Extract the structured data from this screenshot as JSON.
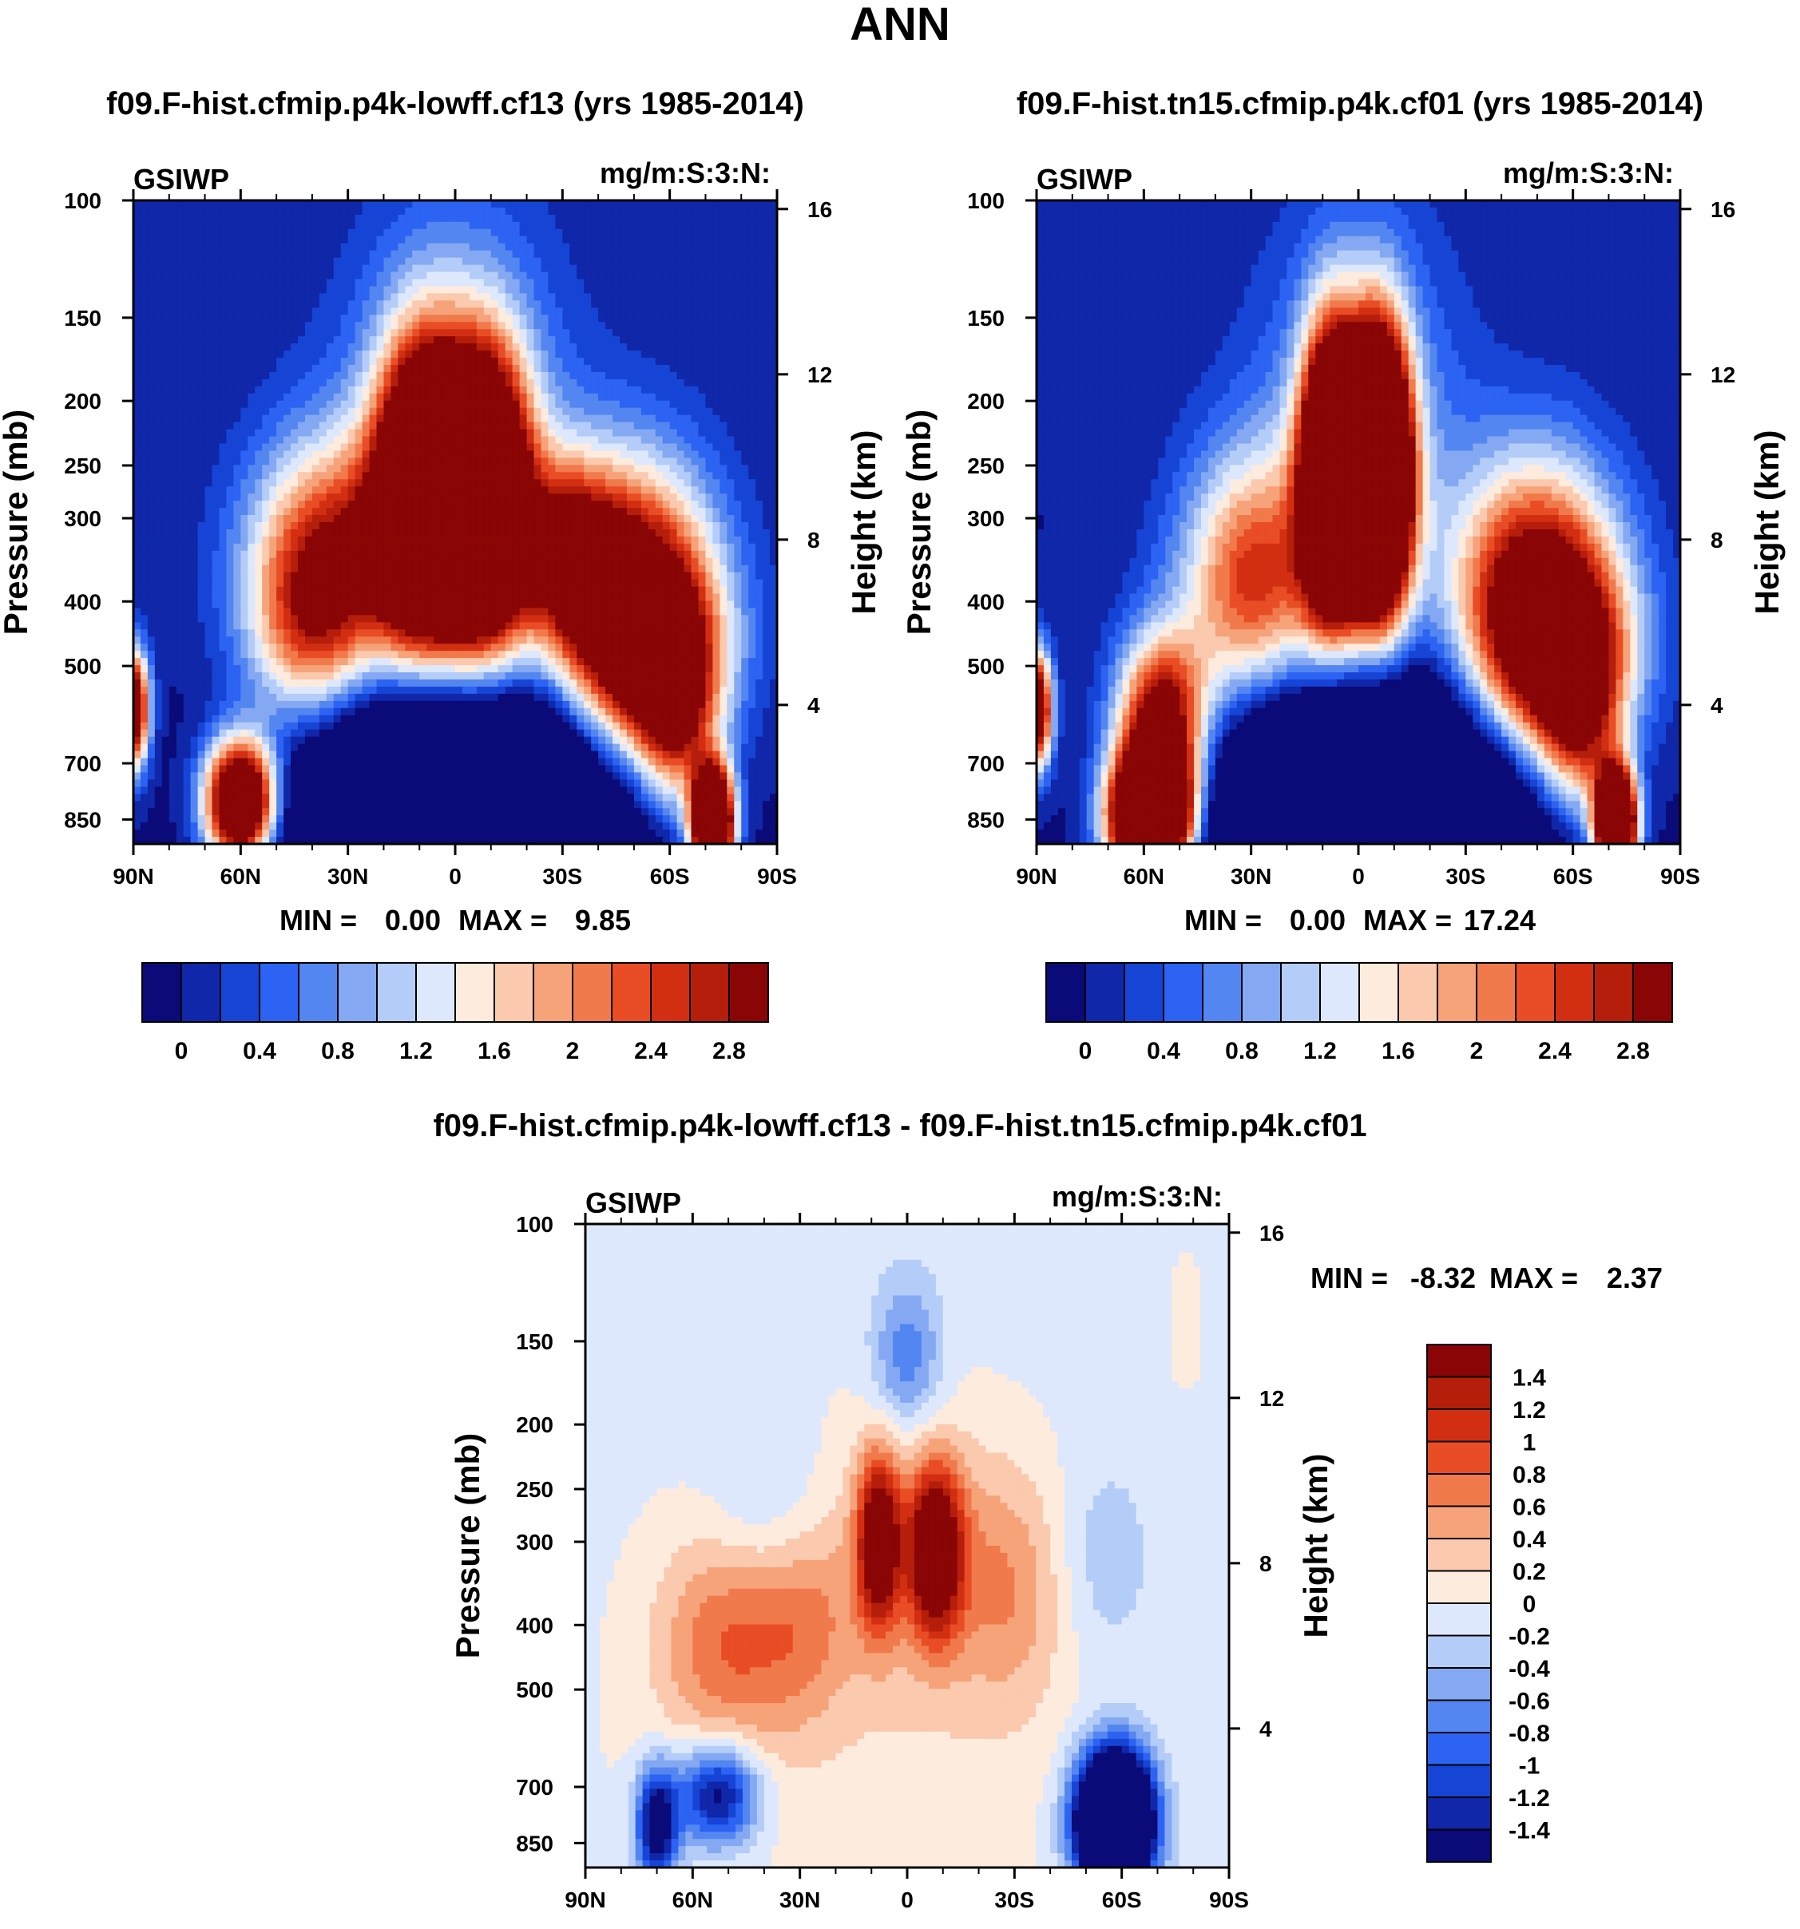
{
  "page_title": "ANN",
  "colors": {
    "seq_scale": [
      "#0a0a78",
      "#0f27a8",
      "#1645d6",
      "#2d63f2",
      "#5386f0",
      "#84a9f2",
      "#b4ccf8",
      "#dde8fc",
      "#fdebde",
      "#fbc9ae",
      "#f6a37a",
      "#f17a4c",
      "#e94d25",
      "#d22f12",
      "#b51e0a",
      "#8a0505"
    ],
    "diff_scale": [
      "#0a0a78",
      "#0f27a8",
      "#1645d6",
      "#2d63f2",
      "#5386f0",
      "#84a9f2",
      "#b4ccf8",
      "#dde8fc",
      "#fdebde",
      "#fbc9ae",
      "#f6a37a",
      "#f17a4c",
      "#e94d25",
      "#d22f12",
      "#b51e0a",
      "#8a0505"
    ]
  },
  "chart_data": [
    {
      "type": "heatmap",
      "title": "f09.F-hist.cfmip.p4k-lowff.cf13 (yrs 1985-2014)",
      "left_string": "GSIWP",
      "right_string": "mg/m:S:3:N:",
      "ylabel": "Pressure (mb)",
      "y2label": "Height (km)",
      "x_ticks": [
        "90N",
        "60N",
        "30N",
        "0",
        "30S",
        "60S",
        "90S"
      ],
      "y_ticks": [
        "100",
        "150",
        "200",
        "250",
        "300",
        "400",
        "500",
        "700",
        "850"
      ],
      "y2_ticks": [
        "16",
        "12",
        "8",
        "4"
      ],
      "min_label": "MIN =",
      "min_value": "0.00",
      "max_label": "MAX =",
      "max_value": "9.85",
      "colorbar_labels": [
        "0",
        "0.4",
        "0.8",
        "1.2",
        "1.6",
        "2",
        "2.4",
        "2.8"
      ],
      "xlim": [
        -90,
        90
      ],
      "ylim": [
        100,
        925
      ],
      "y_scale": "log",
      "field": {
        "bg": 0,
        "features": [
          {
            "lat": -8,
            "p": 290,
            "slat": 9,
            "sp": 0.36,
            "amp": 5.2
          },
          {
            "lat": 9,
            "p": 280,
            "slat": 9,
            "sp": 0.36,
            "amp": 5.0
          },
          {
            "lat": 0,
            "p": 230,
            "slat": 22,
            "sp": 0.55,
            "amp": 1.1
          },
          {
            "lat": -50,
            "p": 400,
            "slat": 16,
            "sp": 0.34,
            "amp": 3.4
          },
          {
            "lat": -62,
            "p": 620,
            "slat": 8,
            "sp": 0.22,
            "amp": 1.8
          },
          {
            "lat": -55,
            "p": 480,
            "slat": 14,
            "sp": 0.22,
            "amp": 1.8
          },
          {
            "lat": -72,
            "p": 860,
            "slat": 4,
            "sp": 0.13,
            "amp": 6.0
          },
          {
            "lat": -32,
            "p": 340,
            "slat": 9,
            "sp": 0.22,
            "amp": 2.0
          },
          {
            "lat": 35,
            "p": 350,
            "slat": 16,
            "sp": 0.3,
            "amp": 2.6
          },
          {
            "lat": 42,
            "p": 470,
            "slat": 12,
            "sp": 0.24,
            "amp": 1.2
          },
          {
            "lat": 60,
            "p": 800,
            "slat": 7,
            "sp": 0.15,
            "amp": 5.0
          },
          {
            "lat": 90,
            "p": 580,
            "slat": 3,
            "sp": 0.14,
            "amp": 4.0
          },
          {
            "lat": 0,
            "p": 880,
            "slat": 30,
            "sp": 0.35,
            "amp": -3.5
          }
        ]
      }
    },
    {
      "type": "heatmap",
      "title": "f09.F-hist.tn15.cfmip.p4k.cf01 (yrs 1985-2014)",
      "left_string": "GSIWP",
      "right_string": "mg/m:S:3:N:",
      "ylabel": "Pressure (mb)",
      "y2label": "Height (km)",
      "x_ticks": [
        "90N",
        "60N",
        "30N",
        "0",
        "30S",
        "60S",
        "90S"
      ],
      "y_ticks": [
        "100",
        "150",
        "200",
        "250",
        "300",
        "400",
        "500",
        "700",
        "850"
      ],
      "y2_ticks": [
        "16",
        "12",
        "8",
        "4"
      ],
      "min_label": "MIN =",
      "min_value": "0.00",
      "max_label": "MAX =",
      "max_value": "17.24",
      "colorbar_labels": [
        "0",
        "0.4",
        "0.8",
        "1.2",
        "1.6",
        "2",
        "2.4",
        "2.8"
      ],
      "xlim": [
        -90,
        90
      ],
      "ylim": [
        100,
        925
      ],
      "y_scale": "log",
      "field": {
        "bg": 0,
        "features": [
          {
            "lat": -6,
            "p": 260,
            "slat": 6,
            "sp": 0.34,
            "amp": 6.5
          },
          {
            "lat": 7,
            "p": 260,
            "slat": 6,
            "sp": 0.34,
            "amp": 6.0
          },
          {
            "lat": 0,
            "p": 230,
            "slat": 20,
            "sp": 0.55,
            "amp": 1.0
          },
          {
            "lat": -50,
            "p": 400,
            "slat": 16,
            "sp": 0.34,
            "amp": 3.4
          },
          {
            "lat": -62,
            "p": 620,
            "slat": 8,
            "sp": 0.22,
            "amp": 1.8
          },
          {
            "lat": -57,
            "p": 480,
            "slat": 14,
            "sp": 0.22,
            "amp": 1.8
          },
          {
            "lat": -72,
            "p": 860,
            "slat": 4,
            "sp": 0.13,
            "amp": 6.0
          },
          {
            "lat": 30,
            "p": 380,
            "slat": 14,
            "sp": 0.32,
            "amp": 2.4
          },
          {
            "lat": 55,
            "p": 620,
            "slat": 9,
            "sp": 0.22,
            "amp": 3.5
          },
          {
            "lat": 58,
            "p": 850,
            "slat": 8,
            "sp": 0.15,
            "amp": 6.5
          },
          {
            "lat": 90,
            "p": 580,
            "slat": 3,
            "sp": 0.14,
            "amp": 4.0
          },
          {
            "lat": 0,
            "p": 880,
            "slat": 30,
            "sp": 0.35,
            "amp": -3.5
          }
        ]
      }
    },
    {
      "type": "heatmap",
      "title": "f09.F-hist.cfmip.p4k-lowff.cf13 - f09.F-hist.tn15.cfmip.p4k.cf01",
      "left_string": "GSIWP",
      "right_string": "mg/m:S:3:N:",
      "ylabel": "Pressure (mb)",
      "y2label": "Height (km)",
      "x_ticks": [
        "90N",
        "60N",
        "30N",
        "0",
        "30S",
        "60S",
        "90S"
      ],
      "y_ticks": [
        "100",
        "150",
        "200",
        "250",
        "300",
        "400",
        "500",
        "700",
        "850"
      ],
      "y2_ticks": [
        "16",
        "12",
        "8",
        "4"
      ],
      "min_label": "MIN =",
      "min_value": "-8.32",
      "max_label": "MAX =",
      "max_value": "2.37",
      "colorbar_labels": [
        "1.4",
        "1.2",
        "1",
        "0.8",
        "0.6",
        "0.4",
        "0.2",
        "0",
        "-0.2",
        "-0.4",
        "-0.6",
        "-0.8",
        "-1",
        "-1.2",
        "-1.4"
      ],
      "xlim": [
        -90,
        90
      ],
      "ylim": [
        100,
        925
      ],
      "y_scale": "log",
      "field": {
        "bg": -0.05,
        "features": [
          {
            "lat": -8,
            "p": 310,
            "slat": 5,
            "sp": 0.2,
            "amp": 1.9
          },
          {
            "lat": 8,
            "p": 300,
            "slat": 4,
            "sp": 0.2,
            "amp": 1.8
          },
          {
            "lat": 0,
            "p": 300,
            "slat": 14,
            "sp": 0.35,
            "amp": 0.5
          },
          {
            "lat": -28,
            "p": 350,
            "slat": 12,
            "sp": 0.3,
            "amp": 0.6
          },
          {
            "lat": 28,
            "p": 390,
            "slat": 10,
            "sp": 0.25,
            "amp": 0.5
          },
          {
            "lat": 50,
            "p": 420,
            "slat": 14,
            "sp": 0.28,
            "amp": 0.8
          },
          {
            "lat": 10,
            "p": 650,
            "slat": 45,
            "sp": 0.4,
            "amp": 0.15
          },
          {
            "lat": 0,
            "p": 160,
            "slat": 7,
            "sp": 0.2,
            "amp": -0.75
          },
          {
            "lat": 40,
            "p": 280,
            "slat": 12,
            "sp": 0.2,
            "amp": -0.3
          },
          {
            "lat": -55,
            "p": 320,
            "slat": 10,
            "sp": 0.25,
            "amp": -0.3
          },
          {
            "lat": 53,
            "p": 720,
            "slat": 8,
            "sp": 0.12,
            "amp": -1.6
          },
          {
            "lat": 70,
            "p": 800,
            "slat": 4,
            "sp": 0.14,
            "amp": -1.8
          },
          {
            "lat": -58,
            "p": 790,
            "slat": 7,
            "sp": 0.16,
            "amp": -5.0
          },
          {
            "lat": -78,
            "p": 140,
            "slat": 3,
            "sp": 0.15,
            "amp": 0.2
          }
        ]
      }
    }
  ]
}
